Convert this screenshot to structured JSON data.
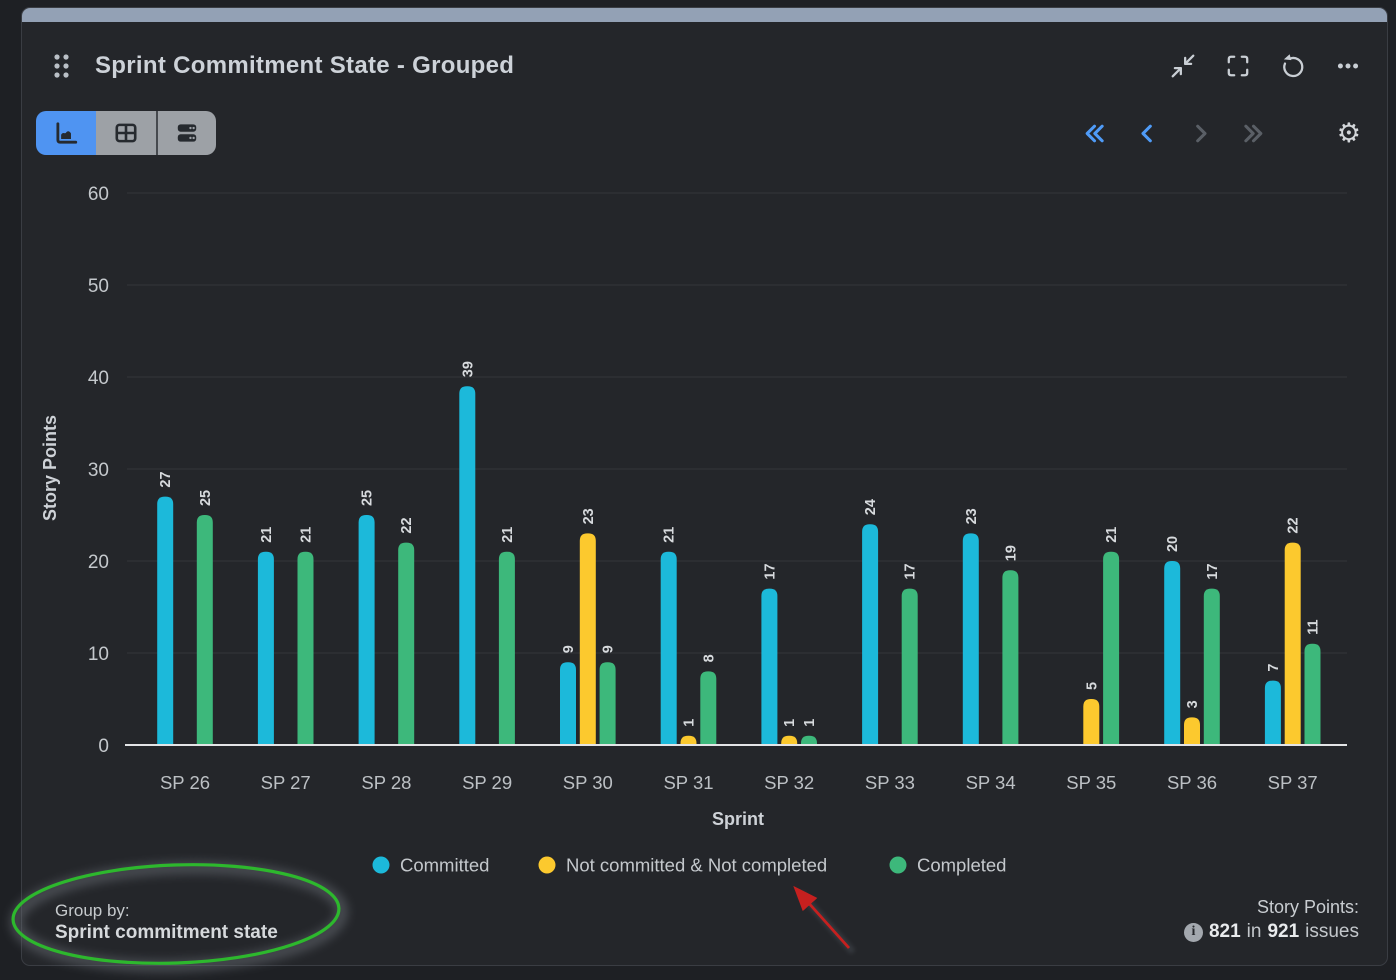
{
  "header": {
    "title": "Sprint Commitment State - Grouped",
    "actions": [
      {
        "name": "collapse",
        "icon": "collapse-icon"
      },
      {
        "name": "fullscreen",
        "icon": "fullscreen-icon"
      },
      {
        "name": "refresh",
        "icon": "refresh-icon"
      },
      {
        "name": "more",
        "icon": "ellipsis-icon"
      }
    ]
  },
  "toolbar": {
    "view_switcher": [
      {
        "name": "chart-view",
        "icon": "area-chart-icon",
        "active": true
      },
      {
        "name": "table-view",
        "icon": "table-icon",
        "active": false
      },
      {
        "name": "rows-view",
        "icon": "rows-icon",
        "active": false
      }
    ],
    "pagination": [
      {
        "name": "first-page",
        "icon": "double-chevron-left-icon",
        "enabled": true
      },
      {
        "name": "previous-page",
        "icon": "chevron-left-icon",
        "enabled": true
      },
      {
        "name": "next-page",
        "icon": "chevron-right-icon",
        "enabled": false
      },
      {
        "name": "last-page",
        "icon": "double-chevron-right-icon",
        "enabled": false
      }
    ],
    "settings_icon": "gear-icon"
  },
  "chart_data": {
    "type": "bar",
    "title": "",
    "categories": [
      "SP 26",
      "SP 27",
      "SP 28",
      "SP 29",
      "SP 30",
      "SP 31",
      "SP 32",
      "SP 33",
      "SP 34",
      "SP 35",
      "SP 36",
      "SP 37"
    ],
    "series": [
      {
        "name": "Committed",
        "color": "#1cb9da",
        "values": [
          27,
          21,
          25,
          39,
          9,
          21,
          17,
          24,
          23,
          0,
          20,
          7
        ]
      },
      {
        "name": "Not committed & Not completed",
        "color": "#fcc92e",
        "values": [
          0,
          0,
          0,
          0,
          23,
          1,
          1,
          0,
          0,
          5,
          3,
          22
        ]
      },
      {
        "name": "Completed",
        "color": "#3db87b",
        "values": [
          25,
          21,
          22,
          21,
          9,
          8,
          1,
          17,
          19,
          21,
          17,
          11
        ]
      }
    ],
    "xlabel": "Sprint",
    "ylabel": "Story Points",
    "ylim": [
      0,
      60
    ],
    "ytick_step": 10,
    "grid": true,
    "legend_position": "bottom",
    "value_labels": "rotated"
  },
  "footer": {
    "group_by_label": "Group by:",
    "group_by_value": "Sprint commitment state",
    "measure_label": "Story Points:",
    "info_icon_glyph": "i",
    "count_primary": "821",
    "count_conjunction": "in",
    "count_secondary": "921",
    "count_suffix": "issues"
  },
  "annotations": {
    "ellipse_color": "#2db82d",
    "arrow_color": "#c6201f"
  },
  "colors": {
    "accent_blue": "#4f94f2",
    "pagination_blue": "#4f9bf7",
    "disabled_gray": "#5a5f66",
    "card_bg": "#24262a",
    "topbar": "#93a1b5"
  }
}
